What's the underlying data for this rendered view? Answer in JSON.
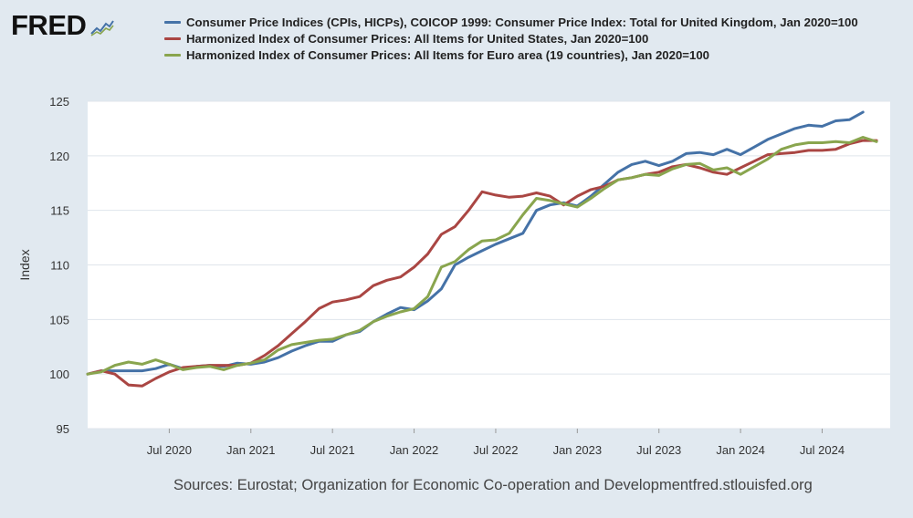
{
  "brand": {
    "logo_text": "FRED",
    "logo_icon": "fred-chart-icon"
  },
  "colors": {
    "uk": "#4572a7",
    "us": "#aa4643",
    "ea": "#89a54e",
    "background": "#e1e9f0",
    "plot_bg": "#ffffff",
    "grid": "#e0e6ec"
  },
  "footer": {
    "sources": "Sources: Eurostat; Organization for Economic Co-operation and Development",
    "site": "fred.stlouisfed.org"
  },
  "chart_data": {
    "type": "line",
    "ylabel": "Index",
    "xlabel": "",
    "ylim": [
      95,
      125
    ],
    "yticks": [
      95,
      100,
      105,
      110,
      115,
      120,
      125
    ],
    "xtick_labels": [
      "Jul 2020",
      "Jan 2021",
      "Jul 2021",
      "Jan 2022",
      "Jul 2022",
      "Jan 2023",
      "Jul 2023",
      "Jan 2024",
      "Jul 2024"
    ],
    "xtick_month_index": [
      6,
      12,
      18,
      24,
      30,
      36,
      42,
      48,
      54
    ],
    "x_start": "Jan 2020",
    "x_month_range": [
      0,
      59
    ],
    "legend_position": "top",
    "series": [
      {
        "name": "Consumer Price Indices (CPIs, HICPs), COICOP 1999: Consumer Price Index: Total for United Kingdom, Jan 2020=100",
        "key": "uk",
        "values": [
          100.0,
          100.3,
          100.3,
          100.3,
          100.3,
          100.5,
          100.9,
          100.5,
          100.7,
          100.8,
          100.7,
          101.0,
          100.9,
          101.1,
          101.5,
          102.1,
          102.6,
          103.0,
          103.0,
          103.6,
          103.9,
          104.8,
          105.5,
          106.1,
          105.9,
          106.7,
          107.8,
          110.0,
          110.7,
          111.3,
          111.9,
          112.4,
          112.9,
          115.0,
          115.5,
          115.7,
          115.4,
          116.3,
          117.4,
          118.5,
          119.2,
          119.5,
          119.1,
          119.5,
          120.2,
          120.3,
          120.1,
          120.6,
          120.1,
          120.8,
          121.5,
          122.0,
          122.5,
          122.8,
          122.7,
          123.2,
          123.3,
          124.0
        ]
      },
      {
        "name": "Harmonized Index of Consumer Prices: All Items for United States, Jan 2020=100",
        "key": "us",
        "values": [
          100.0,
          100.3,
          100.0,
          99.0,
          98.9,
          99.6,
          100.2,
          100.6,
          100.7,
          100.8,
          100.8,
          100.8,
          101.0,
          101.7,
          102.6,
          103.7,
          104.8,
          106.0,
          106.6,
          106.8,
          107.1,
          108.1,
          108.6,
          108.9,
          109.8,
          111.0,
          112.8,
          113.5,
          115.0,
          116.7,
          116.4,
          116.2,
          116.3,
          116.6,
          116.3,
          115.5,
          116.3,
          116.9,
          117.2,
          117.8,
          118.0,
          118.3,
          118.5,
          119.0,
          119.2,
          118.9,
          118.5,
          118.3,
          118.9,
          119.5,
          120.1,
          120.2,
          120.3,
          120.5,
          120.5,
          120.6,
          121.1,
          121.4,
          121.4
        ]
      },
      {
        "name": "Harmonized Index of Consumer Prices: All Items for Euro area (19 countries), Jan 2020=100",
        "key": "ea",
        "values": [
          100.0,
          100.2,
          100.8,
          101.1,
          100.9,
          101.3,
          100.9,
          100.4,
          100.6,
          100.7,
          100.4,
          100.8,
          101.0,
          101.3,
          102.2,
          102.7,
          102.9,
          103.1,
          103.2,
          103.6,
          104.0,
          104.8,
          105.3,
          105.7,
          106.0,
          107.1,
          109.8,
          110.3,
          111.4,
          112.2,
          112.3,
          112.9,
          114.6,
          116.1,
          115.9,
          115.6,
          115.3,
          116.1,
          117.0,
          117.8,
          118.0,
          118.3,
          118.2,
          118.8,
          119.2,
          119.3,
          118.7,
          118.9,
          118.3,
          119.0,
          119.7,
          120.6,
          121.0,
          121.2,
          121.2,
          121.3,
          121.2,
          121.7,
          121.3
        ]
      }
    ]
  }
}
